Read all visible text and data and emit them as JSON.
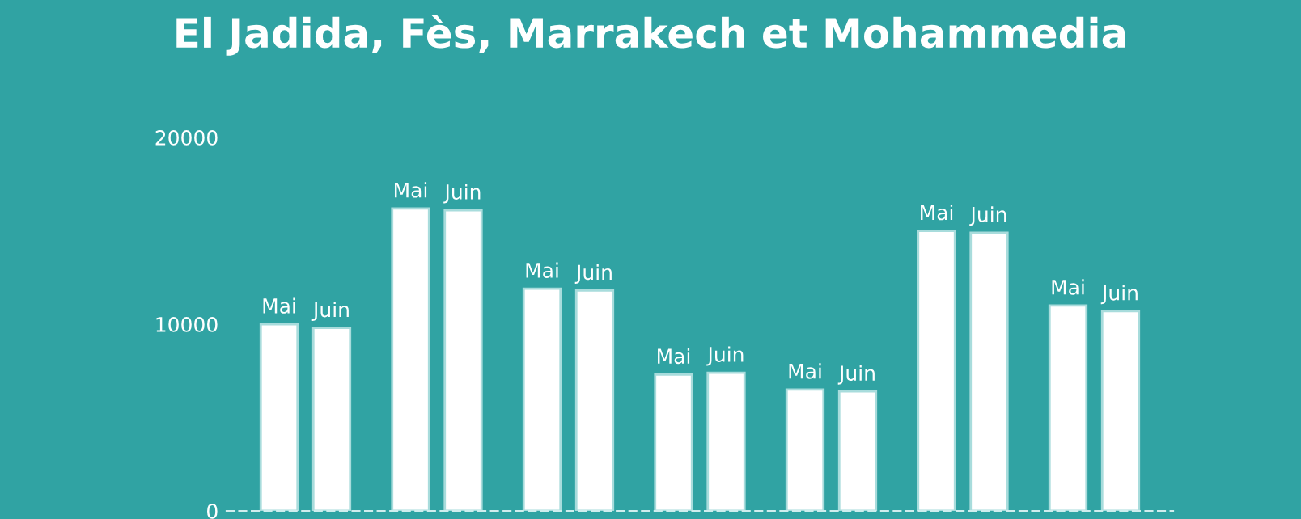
{
  "chart_data": {
    "type": "bar",
    "title": "El Jadida, Fès, Marrakech et Mohammedia",
    "categories": [
      null,
      null,
      null,
      null,
      null,
      null,
      null
    ],
    "series": [
      {
        "name": "Mai",
        "color": "#ffffff",
        "values": [
          10000,
          16200,
          11900,
          7300,
          6500,
          15000,
          11000
        ]
      },
      {
        "name": "Juin",
        "color": "#ffffff",
        "values": [
          9800,
          16100,
          11800,
          7400,
          6400,
          14900,
          10700
        ]
      }
    ],
    "ylim": [
      0,
      20000
    ],
    "yticks": [
      0,
      10000,
      20000
    ],
    "grid": false,
    "legend": false,
    "tick_labels": "y"
  }
}
